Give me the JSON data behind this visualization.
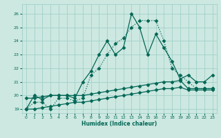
{
  "title": "",
  "xlabel": "Humidex (Indice chaleur)",
  "xlim": [
    -0.5,
    23.5
  ],
  "ylim": [
    18.7,
    26.7
  ],
  "yticks": [
    19,
    20,
    21,
    22,
    23,
    24,
    25,
    26
  ],
  "xticks": [
    0,
    1,
    2,
    3,
    4,
    5,
    6,
    7,
    8,
    9,
    10,
    11,
    12,
    13,
    14,
    15,
    16,
    17,
    18,
    19,
    20,
    21,
    22,
    23
  ],
  "bg_color": "#cce8e0",
  "grid_color": "#99ccc4",
  "line_color": "#006655",
  "series": [
    {
      "x": [
        0,
        1,
        2,
        3,
        4,
        5,
        6,
        7,
        8,
        9,
        10,
        11,
        12,
        13,
        14,
        15,
        16,
        17,
        18,
        19,
        20,
        21,
        22,
        23
      ],
      "y": [
        19.0,
        20.0,
        19.7,
        20.0,
        20.0,
        20.0,
        19.8,
        21.0,
        21.8,
        23.0,
        24.0,
        23.0,
        23.5,
        26.0,
        25.0,
        23.0,
        24.5,
        23.5,
        22.5,
        21.2,
        21.5,
        21.0,
        21.0,
        21.5
      ],
      "marker": "D",
      "markersize": 2.5,
      "linestyle": "-",
      "linewidth": 0.9
    },
    {
      "x": [
        0,
        1,
        2,
        3,
        4,
        5,
        6,
        7,
        8,
        9,
        10,
        11,
        12,
        13,
        14,
        15,
        16,
        17,
        18,
        19,
        20,
        21,
        22,
        23
      ],
      "y": [
        19.0,
        19.5,
        19.5,
        19.0,
        19.8,
        19.8,
        19.6,
        19.8,
        21.5,
        22.0,
        23.0,
        23.8,
        24.2,
        25.0,
        25.5,
        25.5,
        25.5,
        24.0,
        22.0,
        21.5,
        21.0,
        20.5,
        20.5,
        20.5
      ],
      "marker": "D",
      "markersize": 2.5,
      "linestyle": ":",
      "linewidth": 0.9
    },
    {
      "x": [
        0,
        1,
        2,
        3,
        4,
        5,
        6,
        7,
        8,
        9,
        10,
        11,
        12,
        13,
        14,
        15,
        16,
        17,
        18,
        19,
        20,
        21,
        22,
        23
      ],
      "y": [
        19.8,
        19.8,
        19.9,
        20.0,
        20.0,
        20.0,
        20.0,
        20.0,
        20.1,
        20.2,
        20.3,
        20.4,
        20.5,
        20.6,
        20.7,
        20.8,
        20.9,
        21.0,
        21.0,
        21.1,
        20.5,
        20.5,
        20.5,
        20.5
      ],
      "marker": "D",
      "markersize": 2.5,
      "linestyle": "-",
      "linewidth": 0.9
    },
    {
      "x": [
        0,
        1,
        2,
        3,
        4,
        5,
        6,
        7,
        8,
        9,
        10,
        11,
        12,
        13,
        14,
        15,
        16,
        17,
        18,
        19,
        20,
        21,
        22,
        23
      ],
      "y": [
        19.0,
        19.0,
        19.1,
        19.2,
        19.3,
        19.4,
        19.5,
        19.5,
        19.6,
        19.7,
        19.8,
        19.9,
        20.0,
        20.1,
        20.2,
        20.3,
        20.4,
        20.5,
        20.5,
        20.6,
        20.4,
        20.4,
        20.4,
        20.4
      ],
      "marker": "D",
      "markersize": 2.5,
      "linestyle": "-",
      "linewidth": 0.9
    }
  ]
}
